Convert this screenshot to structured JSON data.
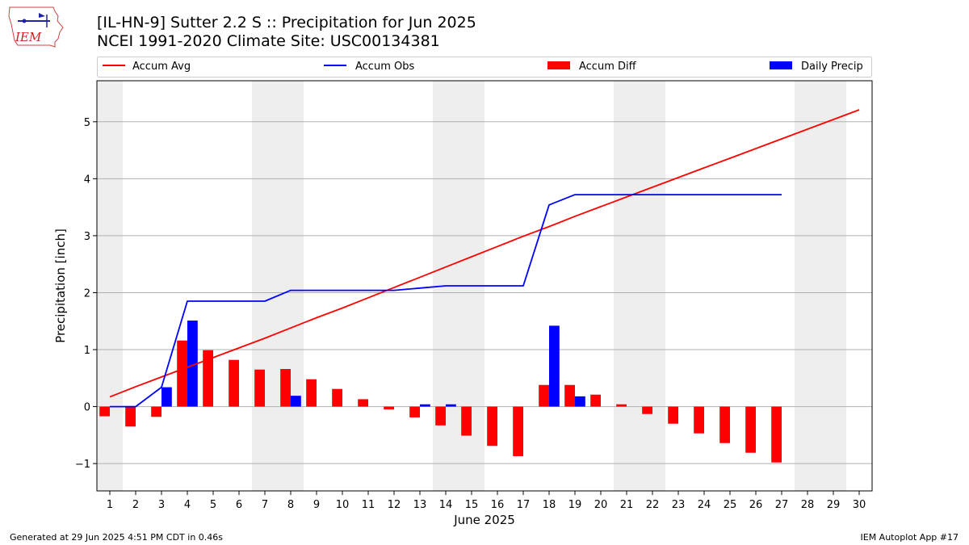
{
  "header": {
    "title_line1": "[IL-HN-9] Sutter 2.2 S :: Precipitation for Jun 2025",
    "title_line2": "NCEI 1991-2020 Climate Site: USC00134381",
    "logo_text": "IEM"
  },
  "footer": {
    "generated": "Generated at 29 Jun 2025 4:51 PM CDT in 0.46s",
    "app": "IEM Autoplot App #17"
  },
  "colors": {
    "avg": "#ff0000",
    "obs": "#0000ff",
    "diff": "#ff0000",
    "daily": "#0000ff",
    "weekend_shade": "#eeeeee",
    "grid": "#b0b0b0"
  },
  "chart_data": {
    "type": "bar",
    "xlabel": "June 2025",
    "ylabel": "Precipitation [inch]",
    "xlim": [
      0.5,
      30.5
    ],
    "ylim": [
      -1.48,
      5.72
    ],
    "yticks": [
      -1,
      0,
      1,
      2,
      3,
      4,
      5
    ],
    "ytick_labels": [
      "−1",
      "0",
      "1",
      "2",
      "3",
      "4",
      "5"
    ],
    "xticks": [
      1,
      2,
      3,
      4,
      5,
      6,
      7,
      8,
      9,
      10,
      11,
      12,
      13,
      14,
      15,
      16,
      17,
      18,
      19,
      20,
      21,
      22,
      23,
      24,
      25,
      26,
      27,
      28,
      29,
      30
    ],
    "grid": "horizontal",
    "legend_position": "top",
    "weekend_shading_days": [
      [
        1,
        1
      ],
      [
        7,
        8
      ],
      [
        14,
        15
      ],
      [
        21,
        22
      ],
      [
        28,
        29
      ]
    ],
    "series": [
      {
        "name": "Accum Avg",
        "type": "line",
        "x": [
          1,
          2,
          3,
          4,
          5,
          6,
          7,
          8,
          9,
          10,
          11,
          12,
          13,
          14,
          15,
          16,
          17,
          18,
          19,
          20,
          21,
          22,
          23,
          24,
          25,
          26,
          27,
          28,
          29,
          30
        ],
        "values": [
          0.17,
          0.35,
          0.52,
          0.69,
          0.86,
          1.03,
          1.2,
          1.38,
          1.56,
          1.73,
          1.91,
          2.09,
          2.27,
          2.45,
          2.63,
          2.81,
          2.99,
          3.16,
          3.34,
          3.51,
          3.68,
          3.85,
          4.02,
          4.19,
          4.36,
          4.53,
          4.7,
          4.87,
          5.04,
          5.21
        ]
      },
      {
        "name": "Accum Obs",
        "type": "line",
        "x": [
          1,
          2,
          3,
          4,
          5,
          6,
          7,
          8,
          9,
          10,
          11,
          12,
          13,
          14,
          15,
          16,
          17,
          18,
          19,
          20,
          21,
          22,
          23,
          24,
          25,
          26,
          27
        ],
        "values": [
          0,
          0,
          0.34,
          1.85,
          1.85,
          1.85,
          1.85,
          2.04,
          2.04,
          2.04,
          2.04,
          2.04,
          2.08,
          2.12,
          2.12,
          2.12,
          2.12,
          3.54,
          3.72,
          3.72,
          3.72,
          3.72,
          3.72,
          3.72,
          3.72,
          3.72,
          3.72
        ]
      },
      {
        "name": "Accum Diff",
        "type": "bar",
        "x": [
          1,
          2,
          3,
          4,
          5,
          6,
          7,
          8,
          9,
          10,
          11,
          12,
          13,
          14,
          15,
          16,
          17,
          18,
          19,
          20,
          21,
          22,
          23,
          24,
          25,
          26,
          27
        ],
        "values": [
          -0.17,
          -0.35,
          -0.18,
          1.16,
          0.99,
          0.82,
          0.65,
          0.66,
          0.48,
          0.31,
          0.13,
          -0.05,
          -0.19,
          -0.33,
          -0.51,
          -0.69,
          -0.87,
          0.38,
          0.38,
          0.21,
          0.04,
          -0.13,
          -0.3,
          -0.47,
          -0.64,
          -0.81,
          -0.98
        ]
      },
      {
        "name": "Daily Precip",
        "type": "bar",
        "x": [
          1,
          2,
          3,
          4,
          5,
          6,
          7,
          8,
          9,
          10,
          11,
          12,
          13,
          14,
          15,
          16,
          17,
          18,
          19,
          20,
          21,
          22,
          23,
          24,
          25,
          26,
          27
        ],
        "values": [
          0,
          0,
          0.34,
          1.51,
          0,
          0,
          0,
          0.19,
          0,
          0,
          0,
          0,
          0.04,
          0.04,
          0,
          0,
          0,
          1.42,
          0.18,
          0,
          0,
          0,
          0,
          0,
          0,
          0,
          0
        ]
      }
    ]
  }
}
